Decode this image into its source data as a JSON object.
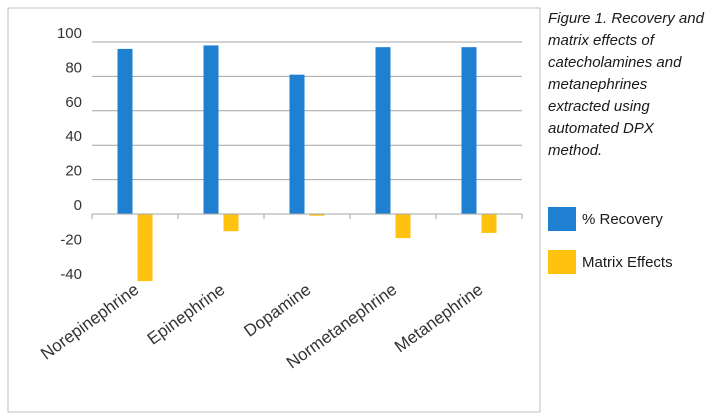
{
  "caption": "Figure 1. Recovery and matrix effects of catecholamines and metanephrines extracted using automated DPX method.",
  "chart_data": {
    "type": "bar",
    "categories": [
      "Norepinephrine",
      "Epinephrine",
      "Dopamine",
      "Normetanephrine",
      "Metanephrine"
    ],
    "series": [
      {
        "name": "% Recovery",
        "color": "#1f7fd1",
        "values": [
          96,
          98,
          81,
          97,
          97
        ]
      },
      {
        "name": "Matrix Effects",
        "color": "#ffc20e",
        "values": [
          -39,
          -10,
          -1,
          -14,
          -11
        ]
      }
    ],
    "ylim": [
      -40,
      100
    ],
    "yticks": [
      100,
      80,
      60,
      40,
      20,
      0,
      -20,
      -40
    ],
    "ytick_labels": [
      "100",
      "80",
      "60",
      "40",
      "20",
      "0",
      "-20",
      "-40"
    ],
    "grid": true,
    "legend_position": "right"
  }
}
